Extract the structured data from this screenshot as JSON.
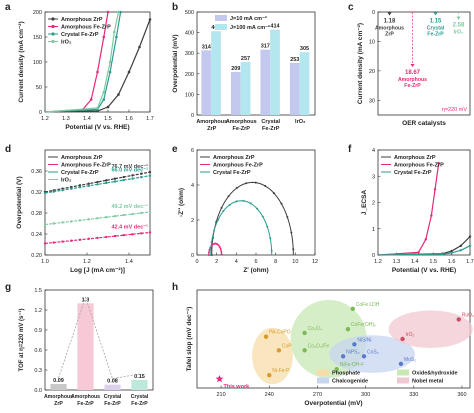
{
  "colors": {
    "amorphous_zrp": "#3d3d3d",
    "amorphous_fezrp": "#e8287a",
    "crystal_fezrp": "#2a9d8f",
    "iro2": "#7ec9a0",
    "bar_10": "#c3c8ee",
    "bar_100": "#b4e6f0",
    "tof_bar_1": "#c8c8c8",
    "tof_bar_2": "#f7c9d6",
    "tof_bar_3": "#ddd0ee",
    "tof_bar_4": "#bfe8dc",
    "phosphate": "#f7dca8",
    "oxide_hydroxide": "#c8e8b4",
    "chalcogenide": "#c8d6f0",
    "noble_metal": "#f0c8d0",
    "this_work": "#e8287a"
  },
  "panels": {
    "a": "a",
    "b": "b",
    "c": "c",
    "d": "d",
    "e": "e",
    "f": "f",
    "g": "g",
    "h": "h"
  },
  "chart_data": [
    {
      "panel": "a",
      "type": "line",
      "xlabel": "Potential (V vs. RHE)",
      "ylabel": "Current density (mA cm⁻²)",
      "xlim": [
        1.2,
        1.7
      ],
      "ylim": [
        0,
        200
      ],
      "xticks": [
        "1.2",
        "1.3",
        "1.4",
        "1.5",
        "1.6",
        "1.7"
      ],
      "yticks": [
        "0",
        "50",
        "100",
        "150",
        "200"
      ],
      "legend": [
        "Amorphous ZrP",
        "Amorphous Fe-ZrP",
        "Crystal Fe-ZrP",
        "IrO₂"
      ],
      "series": [
        {
          "name": "Amorphous ZrP",
          "x": [
            1.2,
            1.45,
            1.5,
            1.55,
            1.6,
            1.65,
            1.7
          ],
          "y": [
            0,
            2,
            10,
            35,
            80,
            130,
            185
          ]
        },
        {
          "name": "Amorphous Fe-ZrP",
          "x": [
            1.2,
            1.38,
            1.42,
            1.45,
            1.48,
            1.5
          ],
          "y": [
            0,
            5,
            25,
            80,
            150,
            200
          ]
        },
        {
          "name": "Crystal Fe-ZrP",
          "x": [
            1.2,
            1.45,
            1.48,
            1.51,
            1.54,
            1.56
          ],
          "y": [
            0,
            5,
            25,
            80,
            150,
            200
          ]
        },
        {
          "name": "IrO₂",
          "x": [
            1.2,
            1.45,
            1.48,
            1.51,
            1.53,
            1.55
          ],
          "y": [
            0,
            8,
            40,
            100,
            160,
            200
          ]
        }
      ]
    },
    {
      "panel": "b",
      "type": "bar",
      "ylabel": "Overpotential (mV)",
      "ylim": [
        0,
        500
      ],
      "yticks": [
        "0",
        "100",
        "200",
        "300",
        "400",
        "500"
      ],
      "categories": [
        "Amorphous ZrP",
        "Amorphous Fe-ZrP",
        "Crystal Fe-ZrP",
        "IrO₂"
      ],
      "series": [
        {
          "name": "J=10 mA cm⁻²",
          "values": [
            314,
            209,
            317,
            253
          ]
        },
        {
          "name": "J=100 mA cm⁻²",
          "values": [
            407,
            257,
            414,
            305
          ]
        }
      ]
    },
    {
      "panel": "c",
      "type": "scatter",
      "ylabel": "Current density (mA cm⁻²)",
      "xlabel": "OER catalysts",
      "ylim": [
        0,
        35
      ],
      "yticks": [
        "0",
        "10",
        "20",
        "30"
      ],
      "threshold_label": "η=220 mV",
      "points": [
        {
          "label": "1.18",
          "name": "Amorphous ZrP",
          "y": 1.18
        },
        {
          "label": "18.67",
          "name": "Amorphous Fe-ZrP",
          "y": 18.67
        },
        {
          "label": "1.15",
          "name": "Crystal Fe-ZrP",
          "y": 1.15
        },
        {
          "label": "2.58",
          "name": "IrO₂",
          "y": 2.58
        }
      ]
    },
    {
      "panel": "d",
      "type": "line",
      "xlabel": "Log [J (mA cm⁻²)]",
      "ylabel": "Overpotential (V)",
      "xlim": [
        1.0,
        1.5
      ],
      "ylim": [
        0.2,
        0.4
      ],
      "xticks": [
        "1.0",
        "1.2",
        "1.4"
      ],
      "yticks": [
        "0.20",
        "0.24",
        "0.28",
        "0.32",
        "0.36"
      ],
      "legend": [
        "Amorphous ZrP",
        "Amorphous Fe-ZrP",
        "Crystal Fe-ZrP",
        "IrO₂"
      ],
      "series": [
        {
          "name": "Amorphous ZrP",
          "x": [
            1.0,
            1.5
          ],
          "y": [
            0.32,
            0.358
          ],
          "annotation": "76.7 mV dec⁻¹"
        },
        {
          "name": "Amorphous Fe-ZrP",
          "x": [
            1.0,
            1.5
          ],
          "y": [
            0.222,
            0.243
          ],
          "annotation": "42.4 mV dec⁻¹"
        },
        {
          "name": "Crystal Fe-ZrP",
          "x": [
            1.0,
            1.5
          ],
          "y": [
            0.318,
            0.351
          ],
          "annotation": "66.0 mV dec⁻¹"
        },
        {
          "name": "IrO₂",
          "x": [
            1.0,
            1.5
          ],
          "y": [
            0.258,
            0.282
          ],
          "annotation": "49.2 mV dec⁻¹"
        }
      ]
    },
    {
      "panel": "e",
      "type": "scatter",
      "xlabel": "Z' (ohm)",
      "ylabel": "-Z'' (ohm)",
      "xlim": [
        0,
        12
      ],
      "ylim": [
        0,
        6
      ],
      "xticks": [
        "0",
        "2",
        "4",
        "6",
        "8",
        "10",
        "12"
      ],
      "yticks": [
        "0",
        "2",
        "4",
        "6"
      ],
      "legend": [
        "Amorphous ZrP",
        "Amorphous Fe-ZrP",
        "Crystal Fe-ZrP"
      ],
      "series": [
        {
          "name": "Amorphous ZrP",
          "start": 1.5,
          "end": 9.8
        },
        {
          "name": "Amorphous Fe-ZrP",
          "start": 1.2,
          "end": 2.5
        },
        {
          "name": "Crystal Fe-ZrP",
          "start": 1.4,
          "end": 7.6
        }
      ]
    },
    {
      "panel": "f",
      "type": "line",
      "xlabel": "Potential (V vs. RHE)",
      "ylabel": "J_ECSA",
      "xlim": [
        1.2,
        1.7
      ],
      "ylim": [
        0,
        4
      ],
      "xticks": [
        "1.2",
        "1.3",
        "1.4",
        "1.5",
        "1.6",
        "1.7"
      ],
      "yticks": [
        "0",
        "1",
        "2",
        "3",
        "4"
      ],
      "legend": [
        "Amorphous ZrP",
        "Amorphous Fe-ZrP",
        "Crystal Fe-ZrP"
      ],
      "series": [
        {
          "name": "Amorphous ZrP",
          "x": [
            1.2,
            1.55,
            1.6,
            1.65,
            1.7
          ],
          "y": [
            0,
            0.05,
            0.15,
            0.35,
            0.7
          ]
        },
        {
          "name": "Amorphous Fe-ZrP",
          "x": [
            1.2,
            1.42,
            1.46,
            1.49,
            1.51,
            1.53
          ],
          "y": [
            0,
            0.1,
            0.6,
            1.5,
            2.5,
            3.5
          ]
        },
        {
          "name": "Crystal Fe-ZrP",
          "x": [
            1.2,
            1.55,
            1.6,
            1.65,
            1.7
          ],
          "y": [
            0,
            0.03,
            0.08,
            0.18,
            0.35
          ]
        }
      ]
    },
    {
      "panel": "g",
      "type": "bar",
      "ylabel": "TOF at η=220 mV (s⁻¹)",
      "ylim": [
        0,
        1.5
      ],
      "yticks": [
        "0.0",
        "0.3",
        "0.6",
        "0.9",
        "1.2",
        "1.5"
      ],
      "categories": [
        "Amorphous ZrP",
        "Amorphous Fe-ZrP",
        "Crystal Fe-ZrP",
        "Crystal Fe-ZrP"
      ],
      "values": [
        0.09,
        1.3,
        0.08,
        0.15
      ],
      "value_labels": [
        "0.09",
        "1.3",
        "0.08",
        "0.15"
      ]
    },
    {
      "panel": "h",
      "type": "scatter",
      "xlabel": "Overpotential (mV)",
      "ylabel": "Tafel slop (mV dec⁻¹)",
      "xlim": [
        200,
        360
      ],
      "ylim": [
        30,
        160
      ],
      "xticks": [
        "210",
        "240",
        "270",
        "300",
        "330",
        "360"
      ],
      "legend": [
        "Phosphate",
        "Oxide&hydroxide",
        "Chalcogenide",
        "Nobel metal"
      ],
      "this_work_label": "This work",
      "points": [
        {
          "label": "This work",
          "x": 209,
          "y": 42,
          "group": "This work"
        },
        {
          "label": "PA-CoPO",
          "x": 238,
          "y": 98,
          "group": "Phosphate"
        },
        {
          "label": "CoP",
          "x": 246,
          "y": 80,
          "group": "Phosphate"
        },
        {
          "label": "Co₃O₄",
          "x": 262,
          "y": 103,
          "group": "Oxide&hydroxide"
        },
        {
          "label": "Co₃O₄/Fe",
          "x": 262,
          "y": 80,
          "group": "Oxide&hydroxide"
        },
        {
          "label": "Ni-Fe-P",
          "x": 240,
          "y": 47,
          "group": "Phosphate"
        },
        {
          "label": "CoFe LDH",
          "x": 292,
          "y": 135,
          "group": "Oxide&hydroxide"
        },
        {
          "label": "CoFe(OH)ₓ",
          "x": 289,
          "y": 108,
          "group": "Oxide&hydroxide"
        },
        {
          "label": "NiS/Ni",
          "x": 293,
          "y": 88,
          "group": "Chalcogenide"
        },
        {
          "label": "NiFe-OH-F",
          "x": 282,
          "y": 55,
          "group": "Oxide&hydroxide"
        },
        {
          "label": "CoS₂",
          "x": 299,
          "y": 72,
          "group": "Chalcogenide"
        },
        {
          "label": "NiPS₃",
          "x": 286,
          "y": 72,
          "group": "Chalcogenide"
        },
        {
          "label": "MoS₂",
          "x": 322,
          "y": 62,
          "group": "Chalcogenide"
        },
        {
          "label": "IrO₂",
          "x": 323,
          "y": 95,
          "group": "Nobel metal"
        },
        {
          "label": "RuO₂",
          "x": 358,
          "y": 121,
          "group": "Nobel metal"
        }
      ]
    }
  ]
}
